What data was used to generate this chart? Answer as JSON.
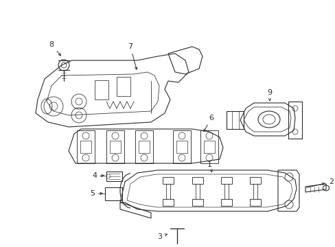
{
  "bg_color": "#ffffff",
  "line_color": "#2a2a2a",
  "lw": 0.8,
  "figsize": [
    4.89,
    3.6
  ],
  "dpi": 100
}
